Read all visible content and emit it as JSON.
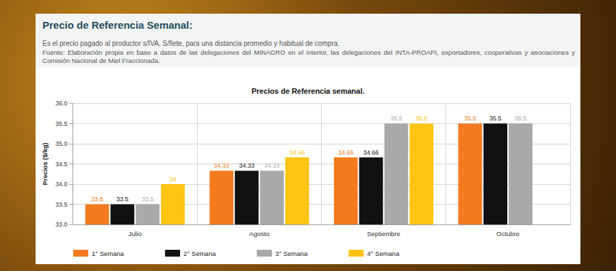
{
  "header": {
    "title": "Precio de Referencia Semanal:",
    "description": "Es el precio pagado al productor s/IVA, S/flete, para una distancia promedio y habitual de compra.",
    "source": "Fuente: Elaboración propia en base a datos de las delegaciones del MINAGRO en el interior, las delegaciones del INTA-PROAPI, exportadores, cooperativas y asociaciones y Comisión Nacional de Miel Fraccionada."
  },
  "chart_data": {
    "type": "bar",
    "title": "Precios de Referencia semanal.",
    "y_label": "Precios ($/kg)",
    "categories": [
      "Julio",
      "Agosto",
      "Septiembre",
      "Octubre"
    ],
    "series": [
      {
        "name": "1° Semana",
        "color": "#f47a20",
        "values": [
          33.5,
          34.33,
          34.66,
          35.5
        ]
      },
      {
        "name": "2° Semana",
        "color": "#111111",
        "values": [
          33.5,
          34.33,
          34.66,
          35.5
        ]
      },
      {
        "name": "3° Semana",
        "color": "#a7a9ab",
        "values": [
          33.5,
          34.33,
          35.5,
          35.5
        ]
      },
      {
        "name": "4° Semana",
        "color": "#fdc414",
        "values": [
          34,
          34.66,
          35.5,
          null
        ]
      }
    ],
    "ylim": [
      33,
      36
    ],
    "yticks": [
      {
        "value": 33,
        "label": "33.0"
      },
      {
        "value": 33.5,
        "label": "33.5"
      },
      {
        "value": 34,
        "label": "34.0"
      },
      {
        "value": 34.5,
        "label": "34.5"
      },
      {
        "value": 35,
        "label": "35.0"
      },
      {
        "value": 35.5,
        "label": "35.5"
      },
      {
        "value": 36,
        "label": "36.0"
      }
    ],
    "grid": true,
    "legend": "bottom",
    "data_labels": true
  }
}
